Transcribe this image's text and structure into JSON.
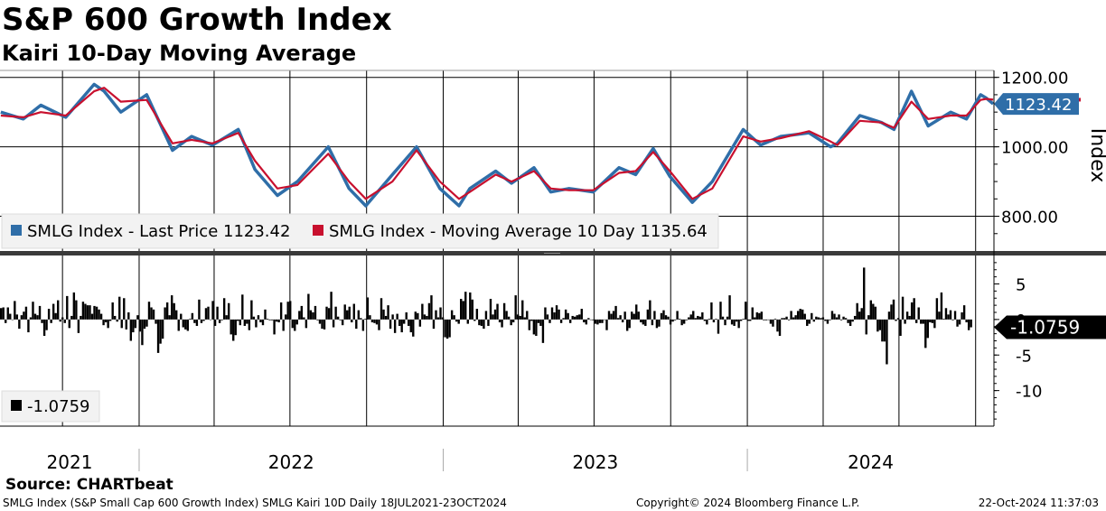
{
  "title": "S&P 600 Growth Index",
  "subtitle": "Kairi 10-Day Moving Average",
  "source": "Source: CHARTbeat",
  "footer": {
    "left": "SMLG Index (S&P Small Cap 600 Growth Index) SMLG Kairi 10D  Daily 18JUL2021-23OCT2024",
    "center": "Copyright© 2024 Bloomberg Finance L.P.",
    "right": "22-Oct-2024 11:37:03"
  },
  "colors": {
    "price": "#2f6ea8",
    "ma": "#c8102e",
    "kairi": "#000000",
    "grid": "#000000"
  },
  "chart_data": [
    {
      "type": "line",
      "ylabel": "Index",
      "ylim": [
        700,
        1220
      ],
      "yticks": [
        {
          "value": 1200,
          "label": "1200.00"
        },
        {
          "value": 1000,
          "label": "1000.00"
        },
        {
          "value": 800,
          "label": "800.00"
        }
      ],
      "x_range": [
        "2021-07-18",
        "2024-10-23"
      ],
      "years": [
        "2021",
        "2022",
        "2023",
        "2024"
      ],
      "x": [
        "2021-07-19",
        "2021-08-15",
        "2021-09-05",
        "2021-10-05",
        "2021-11-08",
        "2021-11-20",
        "2021-12-10",
        "2022-01-10",
        "2022-02-10",
        "2022-03-05",
        "2022-03-30",
        "2022-04-30",
        "2022-05-20",
        "2022-06-16",
        "2022-07-10",
        "2022-08-16",
        "2022-09-10",
        "2022-09-30",
        "2022-11-01",
        "2022-11-30",
        "2022-12-28",
        "2023-01-20",
        "2023-02-02",
        "2023-03-05",
        "2023-03-24",
        "2023-04-20",
        "2023-05-10",
        "2023-06-01",
        "2023-06-30",
        "2023-07-31",
        "2023-08-20",
        "2023-09-10",
        "2023-09-30",
        "2023-10-27",
        "2023-11-20",
        "2023-12-27",
        "2024-01-17",
        "2024-02-10",
        "2024-03-15",
        "2024-04-10",
        "2024-04-18",
        "2024-05-15",
        "2024-06-10",
        "2024-06-25",
        "2024-07-16",
        "2024-08-05",
        "2024-09-01",
        "2024-09-20",
        "2024-10-07",
        "2024-10-14",
        "2024-10-22"
      ],
      "series": [
        {
          "name": "SMLG Index - Last Price 1123.42",
          "values": [
            1100,
            1080,
            1120,
            1085,
            1180,
            1160,
            1100,
            1150,
            990,
            1030,
            1005,
            1050,
            935,
            860,
            900,
            1000,
            880,
            830,
            920,
            1000,
            880,
            830,
            880,
            930,
            895,
            940,
            870,
            880,
            870,
            940,
            920,
            995,
            915,
            840,
            900,
            1050,
            1005,
            1030,
            1040,
            1000,
            1010,
            1090,
            1070,
            1050,
            1160,
            1060,
            1100,
            1080,
            1150,
            1140,
            1123.42
          ]
        },
        {
          "name": "SMLG Index - Moving Average 10 Day 1135.64",
          "values": [
            1090,
            1085,
            1100,
            1090,
            1160,
            1170,
            1130,
            1135,
            1010,
            1020,
            1010,
            1040,
            960,
            880,
            890,
            980,
            900,
            850,
            900,
            990,
            900,
            850,
            870,
            920,
            900,
            930,
            880,
            875,
            875,
            925,
            930,
            985,
            930,
            850,
            880,
            1030,
            1015,
            1025,
            1045,
            1015,
            1005,
            1075,
            1070,
            1055,
            1130,
            1080,
            1090,
            1090,
            1135,
            1138,
            1135.64
          ]
        }
      ],
      "last_value_label": "1123.42",
      "legend": [
        "SMLG Index - Last Price 1123.42",
        "SMLG Index - Moving Average 10 Day 1135.64"
      ]
    },
    {
      "type": "bar",
      "ylim": [
        -15,
        9
      ],
      "yticks": [
        {
          "value": 5,
          "label": "5"
        },
        {
          "value": 0,
          "label": "0"
        },
        {
          "value": -5,
          "label": "-5"
        },
        {
          "value": -10,
          "label": "-10"
        }
      ],
      "series": [
        {
          "name": "-1.0759",
          "values": [
            1.6,
            1.7,
            -0.5,
            1.7,
            0.8,
            0.0,
            2.6,
            0.7,
            -1.3,
            0.6,
            1.1,
            1.8,
            -1.8,
            0.3,
            2.5,
            0.8,
            0.6,
            1.9,
            -0.5,
            -2.3,
            -1.5,
            1.5,
            -0.5,
            2.2,
            0.9,
            2.7,
            -0.3,
            0.3,
            -0.5,
            3.3,
            -1.2,
            0.5,
            3.8,
            2.7,
            -1.9,
            0.5,
            2.5,
            2.2,
            2.0,
            2.0,
            0.8,
            1.9,
            1.8,
            1.4,
            0.8,
            -0.8,
            -0.4,
            -1.2,
            -0.2,
            2.4,
            0.5,
            -0.3,
            3.2,
            -1.2,
            3.0,
            -1.4,
            1.0,
            -3.0,
            -1.8,
            -1.2,
            0.6,
            -1.7,
            -3.6,
            -1.3,
            -1.0,
            2.5,
            1.7,
            1.4,
            -0.6,
            -4.7,
            -3.4,
            -2.7,
            1.7,
            2.4,
            0.6,
            3.4,
            2.3,
            1.3,
            -1.6,
            0.8,
            -1.1,
            -1.4,
            -1.6,
            0.1,
            0.9,
            -0.5,
            -0.9,
            2.8,
            -0.5,
            -0.2,
            1.6,
            1.8,
            0.0,
            2.6,
            -0.9,
            1.8,
            -0.5,
            -0.1,
            3.0,
            0.6,
            2.3,
            -2.1,
            -3.0,
            -2.2,
            -0.2,
            -0.8,
            3.5,
            -0.9,
            -0.6,
            -1.5,
            2.7,
            0.4,
            -1.1,
            0.6,
            -0.4,
            -0.8,
            1.4,
            0.1,
            -0.1,
            -0.1,
            -2.1,
            -0.3,
            -0.4,
            2.4,
            -1.6,
            0.7,
            2.5,
            2.6,
            -1.2,
            -1.6,
            -0.7,
            1.2,
            1.9,
            0.3,
            -1.2,
            3.6,
            1.3,
            1.0,
            1.9,
            -0.1,
            -0.6,
            -1.3,
            -1.4,
            1.8,
            1.6,
            3.9,
            -1.1,
            1.8,
            0.4,
            -0.1,
            -0.8,
            2.1,
            1.3,
            1.8,
            -0.4,
            2.2,
            -1.3,
            1.3,
            0.2,
            -1.6,
            0.1,
            3.1,
            0.6,
            -0.4,
            -0.5,
            -0.7,
            -1.5,
            3.0,
            1.4,
            0.5,
            2.0,
            -1.3,
            0.7,
            -1.9,
            0.8,
            -0.9,
            -1.8,
            -0.6,
            1.0,
            -0.9,
            -1.8,
            -2.4,
            1.1,
            0.9,
            -1.0,
            2.2,
            0.7,
            0.5,
            2.3,
            3.4,
            -1.3,
            1.3,
            0.3,
            1.7,
            0.3,
            -2.5,
            -2.7,
            -2.5,
            1.3,
            0.6,
            -0.3,
            -0.6,
            2.9,
            2.6,
            3.9,
            -0.6,
            3.8,
            2.8,
            -0.2,
            1.5,
            -0.8,
            -0.9,
            -1.3,
            1.2,
            -0.9,
            2.9,
            0.7,
            1.4,
            2.2,
            -0.4,
            -1.1,
            2.3,
            1.2,
            0.4,
            -0.8,
            -0.4,
            3.4,
            0.7,
            0.5,
            2.7,
            0.3,
            1.2,
            -1.5,
            -0.2,
            -2.1,
            -2.3,
            -0.5,
            -0.9,
            -3.3,
            1.7,
            0.7,
            -0.5,
            1.7,
            1.0,
            2.0,
            1.4,
            -0.5,
            0.2,
            1.4,
            0.9,
            -0.5,
            0.5,
            0.4,
            0.6,
            0.7,
            1.5,
            -0.4,
            -0.7,
            0.2,
            0.0,
            -0.1,
            -0.6,
            -0.7,
            -0.5,
            -0.5,
            0.0,
            -1.5,
            1.2,
            0.8,
            1.2,
            1.9,
            0.2,
            0.6,
            -0.4,
            1.1,
            -1.6,
            -1.2,
            1.1,
            0.8,
            2.1,
            1.1,
            -0.4,
            -0.7,
            -0.9,
            1.4,
            2.7,
            -0.8,
            1.2,
            -1.2,
            -1.0,
            0.9,
            1.3,
            0.6,
            0.4,
            -0.7,
            -0.3,
            -0.1,
            1.2,
            0.1,
            -0.8,
            -0.6,
            -0.1,
            0.3,
            0.7,
            1.2,
            0.2,
            0.5,
            0.4,
            1.0,
            -0.2,
            -0.7,
            0.1,
            2.4,
            -0.4,
            0.1,
            -2.0,
            2.5,
            0.4,
            -0.8,
            0.4,
            3.4,
            -0.7,
            -0.9,
            -0.3,
            -1.2,
            -0.2,
            0.1,
            2.5,
            -0.2,
            -0.2,
            1.7,
            0.3,
            1.0,
            0.9,
            1.1,
            -0.1,
            -0.1,
            0.0,
            -0.6,
            -1.0,
            0.1,
            -1.7,
            -2.3,
            0.2,
            0.2,
            0.4,
            -0.1,
            1.2,
            0.3,
            0.6,
            1.2,
            1.5,
            1.4,
            0.8,
            -0.9,
            -0.6,
            0.9,
            -0.3,
            0.4,
            0.3,
            0.2,
            0.3,
            -0.2,
            -0.6,
            -0.1,
            1.2,
            0.8,
            0.3,
            0.7,
            -0.1,
            0.4,
            0.2,
            -0.5,
            -0.9,
            -0.3,
            0.5,
            2.3,
            1.1,
            1.6,
            7.3,
            -2.1,
            0.6,
            2.7,
            2.2,
            1.8,
            -1.7,
            -1.5,
            -3.1,
            -3.1,
            -6.3,
            1.1,
            2.1,
            2.8,
            -0.2,
            0.2,
            -2.3,
            3.2,
            -0.6,
            1.1,
            0.5,
            2.4,
            3.0,
            -0.5,
            1.7,
            -0.6,
            -0.6,
            -4.0,
            -2.6,
            -0.4,
            -0.5,
            -1.2,
            3.0,
            1.1,
            3.8,
            0.1,
            1.6,
            0.7,
            1.3,
            -0.1,
            1.2,
            -1.0,
            -0.7,
            1.0,
            2.0,
            -0.4,
            -1.5,
            -1.1
          ]
        }
      ],
      "last_value_label": "-1.0759",
      "legend": [
        "-1.0759"
      ]
    }
  ]
}
